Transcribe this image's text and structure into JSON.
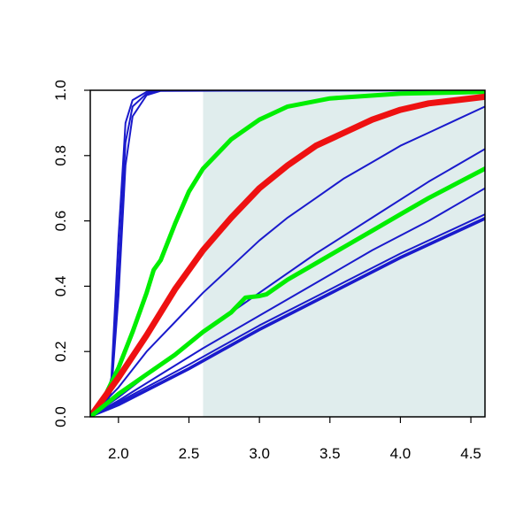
{
  "chart_data": {
    "type": "line",
    "title": "",
    "xlabel": "",
    "ylabel": "",
    "xlim": [
      1.8,
      4.6
    ],
    "ylim": [
      0.0,
      1.0
    ],
    "x_ticks": [
      2.0,
      2.5,
      3.0,
      3.5,
      4.0,
      4.5
    ],
    "x_tick_labels": [
      "2.0",
      "2.5",
      "3.0",
      "3.5",
      "4.0",
      "4.5"
    ],
    "y_ticks": [
      0.0,
      0.2,
      0.4,
      0.6,
      0.8,
      1.0
    ],
    "y_tick_labels": [
      "0.0",
      "0.2",
      "0.4",
      "0.6",
      "0.8",
      "1.0"
    ],
    "grid": false,
    "legend": "none",
    "shaded_region": {
      "x_start": 2.6,
      "x_end": 4.6,
      "color": "#e0eded"
    },
    "series": [
      {
        "color": "#1a1acc",
        "width": 2,
        "points": [
          [
            1.8,
            0.0
          ],
          [
            1.9,
            0.04
          ],
          [
            1.95,
            0.12
          ],
          [
            2.0,
            0.55
          ],
          [
            2.05,
            0.9
          ],
          [
            2.1,
            0.97
          ],
          [
            2.2,
            0.995
          ],
          [
            2.3,
            1.0
          ],
          [
            4.6,
            1.0
          ]
        ]
      },
      {
        "color": "#1a1acc",
        "width": 2,
        "points": [
          [
            1.8,
            0.0
          ],
          [
            1.9,
            0.03
          ],
          [
            1.95,
            0.1
          ],
          [
            2.0,
            0.45
          ],
          [
            2.05,
            0.84
          ],
          [
            2.1,
            0.95
          ],
          [
            2.2,
            0.99
          ],
          [
            2.3,
            1.0
          ],
          [
            4.6,
            1.0
          ]
        ]
      },
      {
        "color": "#1a1acc",
        "width": 2,
        "points": [
          [
            1.8,
            0.0
          ],
          [
            1.9,
            0.02
          ],
          [
            1.95,
            0.08
          ],
          [
            2.0,
            0.37
          ],
          [
            2.05,
            0.77
          ],
          [
            2.1,
            0.92
          ],
          [
            2.2,
            0.985
          ],
          [
            2.3,
            0.998
          ],
          [
            4.6,
            1.0
          ]
        ]
      },
      {
        "color": "#1a1acc",
        "width": 2,
        "points": [
          [
            1.8,
            0.0
          ],
          [
            2.0,
            0.09
          ],
          [
            2.2,
            0.2
          ],
          [
            2.4,
            0.29
          ],
          [
            2.6,
            0.38
          ],
          [
            2.8,
            0.46
          ],
          [
            3.0,
            0.54
          ],
          [
            3.2,
            0.61
          ],
          [
            3.4,
            0.67
          ],
          [
            3.6,
            0.73
          ],
          [
            3.8,
            0.78
          ],
          [
            4.0,
            0.83
          ],
          [
            4.2,
            0.87
          ],
          [
            4.4,
            0.91
          ],
          [
            4.6,
            0.95
          ]
        ]
      },
      {
        "color": "#1a1acc",
        "width": 2,
        "points": [
          [
            1.8,
            0.0
          ],
          [
            2.0,
            0.06
          ],
          [
            2.3,
            0.16
          ],
          [
            2.6,
            0.26
          ],
          [
            3.0,
            0.38
          ],
          [
            3.4,
            0.5
          ],
          [
            3.8,
            0.61
          ],
          [
            4.2,
            0.72
          ],
          [
            4.6,
            0.82
          ]
        ]
      },
      {
        "color": "#1a1acc",
        "width": 2,
        "points": [
          [
            1.8,
            0.0
          ],
          [
            2.0,
            0.05
          ],
          [
            2.3,
            0.13
          ],
          [
            2.6,
            0.21
          ],
          [
            3.0,
            0.31
          ],
          [
            3.4,
            0.41
          ],
          [
            3.8,
            0.51
          ],
          [
            4.2,
            0.6
          ],
          [
            4.6,
            0.7
          ]
        ]
      },
      {
        "color": "#1a1acc",
        "width": 2,
        "points": [
          [
            1.8,
            0.0
          ],
          [
            2.0,
            0.045
          ],
          [
            2.5,
            0.16
          ],
          [
            3.0,
            0.28
          ],
          [
            3.5,
            0.39
          ],
          [
            4.0,
            0.5
          ],
          [
            4.6,
            0.62
          ]
        ]
      },
      {
        "color": "#1a1acc",
        "width": 2,
        "points": [
          [
            1.8,
            0.0
          ],
          [
            2.0,
            0.04
          ],
          [
            2.5,
            0.15
          ],
          [
            3.0,
            0.27
          ],
          [
            3.5,
            0.38
          ],
          [
            4.0,
            0.49
          ],
          [
            4.6,
            0.61
          ]
        ]
      },
      {
        "color": "#1a1acc",
        "width": 2,
        "points": [
          [
            1.8,
            0.0
          ],
          [
            2.0,
            0.035
          ],
          [
            2.5,
            0.145
          ],
          [
            3.0,
            0.265
          ],
          [
            3.5,
            0.375
          ],
          [
            4.0,
            0.485
          ],
          [
            4.6,
            0.605
          ]
        ]
      },
      {
        "color": "#00ee00",
        "width": 5,
        "points": [
          [
            1.8,
            0.0
          ],
          [
            1.9,
            0.06
          ],
          [
            2.0,
            0.15
          ],
          [
            2.1,
            0.26
          ],
          [
            2.2,
            0.38
          ],
          [
            2.25,
            0.45
          ],
          [
            2.3,
            0.48
          ],
          [
            2.4,
            0.59
          ],
          [
            2.5,
            0.69
          ],
          [
            2.6,
            0.76
          ],
          [
            2.8,
            0.85
          ],
          [
            3.0,
            0.91
          ],
          [
            3.2,
            0.95
          ],
          [
            3.5,
            0.975
          ],
          [
            4.0,
            0.99
          ],
          [
            4.6,
            0.995
          ]
        ]
      },
      {
        "color": "#ee1111",
        "width": 7,
        "points": [
          [
            1.8,
            0.0
          ],
          [
            2.0,
            0.12
          ],
          [
            2.2,
            0.25
          ],
          [
            2.4,
            0.39
          ],
          [
            2.6,
            0.51
          ],
          [
            2.8,
            0.61
          ],
          [
            3.0,
            0.7
          ],
          [
            3.2,
            0.77
          ],
          [
            3.4,
            0.83
          ],
          [
            3.6,
            0.87
          ],
          [
            3.8,
            0.91
          ],
          [
            4.0,
            0.94
          ],
          [
            4.2,
            0.96
          ],
          [
            4.4,
            0.97
          ],
          [
            4.6,
            0.98
          ]
        ]
      },
      {
        "color": "#00ee00",
        "width": 5,
        "points": [
          [
            1.8,
            0.0
          ],
          [
            2.0,
            0.07
          ],
          [
            2.2,
            0.13
          ],
          [
            2.4,
            0.19
          ],
          [
            2.6,
            0.26
          ],
          [
            2.8,
            0.32
          ],
          [
            2.9,
            0.365
          ],
          [
            3.0,
            0.37
          ],
          [
            3.05,
            0.375
          ],
          [
            3.2,
            0.42
          ],
          [
            3.4,
            0.47
          ],
          [
            3.6,
            0.52
          ],
          [
            3.8,
            0.57
          ],
          [
            4.0,
            0.62
          ],
          [
            4.2,
            0.67
          ],
          [
            4.4,
            0.715
          ],
          [
            4.6,
            0.76
          ]
        ]
      }
    ]
  }
}
